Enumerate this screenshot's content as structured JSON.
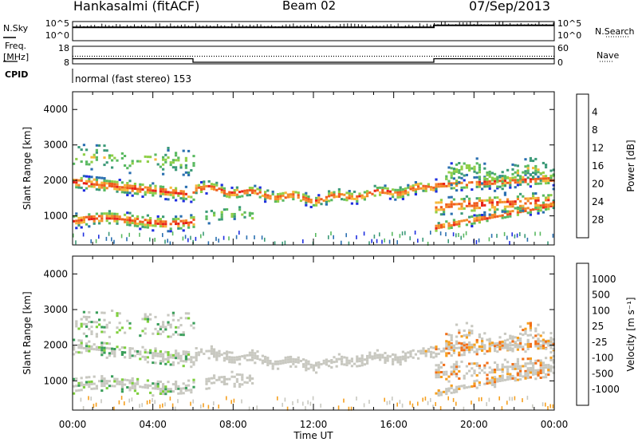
{
  "header": {
    "station": "Hankasalmi (fitACF)",
    "beam": "Beam 02",
    "date": "07/Sep/2013"
  },
  "left_labels": {
    "nsky": "N.Sky",
    "freq": "Freq.",
    "mhz": "[MHz]",
    "cpid": "CPID"
  },
  "right_labels": {
    "nsearch": "N.Search",
    "nave": "Nave"
  },
  "cpid_text": "normal (fast stereo) 153",
  "chart_data": [
    {
      "type": "line",
      "panel": "noise",
      "yticks_left": [
        "10^5",
        "10^0"
      ],
      "yticks_right": [
        "10^5",
        "10^0"
      ],
      "series": [
        {
          "name": "N.Sky",
          "x": [
            "00:00",
            "06:00",
            "06:00",
            "18:00",
            "18:00",
            "24:00"
          ],
          "values": [
            0.7,
            0.7,
            0.7,
            0.7,
            0.8,
            0.8
          ]
        }
      ]
    },
    {
      "type": "line",
      "panel": "freq_nave",
      "yticks_left": [
        "18",
        "8"
      ],
      "yticks_right": [
        "60",
        "0"
      ],
      "series": [
        {
          "name": "Freq.",
          "x": [
            "00:00",
            "06:00",
            "06:00",
            "18:00",
            "18:00",
            "24:00"
          ],
          "values": [
            10,
            10,
            8,
            8,
            10,
            10
          ]
        },
        {
          "name": "Nave",
          "x": [
            "00:00",
            "24:00"
          ],
          "values": [
            26,
            26
          ]
        }
      ]
    },
    {
      "type": "heatmap",
      "panel": "power",
      "ylabel": "Slant Range [km]",
      "yticks": [
        "1000",
        "2000",
        "3000",
        "4000"
      ],
      "ylim": [
        180,
        4500
      ],
      "colorbar": {
        "label": "Power [dB]",
        "ticks": [
          "4",
          "8",
          "12",
          "16",
          "20",
          "24",
          "28"
        ],
        "colors": [
          "#1f2fe0",
          "#2a6fb0",
          "#3c9a78",
          "#59b960",
          "#8fcf48",
          "#f6b83a",
          "#f48a2a",
          "#ef5c1e",
          "#e8221a"
        ]
      }
    },
    {
      "type": "heatmap",
      "panel": "velocity",
      "ylabel": "Slant Range [km]",
      "yticks": [
        "1000",
        "2000",
        "3000",
        "4000"
      ],
      "ylim": [
        180,
        4500
      ],
      "xlabel": "Time UT",
      "xticks": [
        "00:00",
        "04:00",
        "08:00",
        "12:00",
        "16:00",
        "20:00",
        "00:00"
      ],
      "colorbar": {
        "label": "Velocity [m s⁻¹]",
        "ticks": [
          "1000",
          "500",
          "100",
          "25",
          "-25",
          "-100",
          "-500",
          "-1000"
        ],
        "colors": [
          "#2040d0",
          "#2d7a9a",
          "#3a9e5a",
          "#7ecf3c",
          "#c8c8c0",
          "#f5a020",
          "#f26f18",
          "#ea3d14",
          "#e01010"
        ]
      }
    }
  ]
}
